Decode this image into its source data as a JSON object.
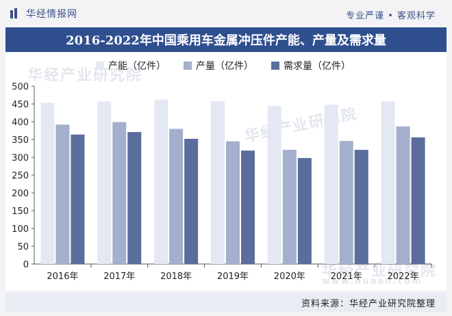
{
  "header": {
    "brand": "华经情报网",
    "slogan": "专业严谨 • 客观科学"
  },
  "colors": {
    "title_bg": "#2f4f8f",
    "capacity": "#e4e8f3",
    "output": "#a3afcc",
    "demand": "#5a6d9c"
  },
  "watermarks": [
    "华经产业研究院",
    "华经产业研究院",
    "华经产业研究院",
    "www.huaon.com"
  ],
  "source": "资料来源：华经产业研究院整理",
  "chart_data": {
    "type": "bar",
    "title": "2016-2022年中国乘用车金属冲压件产能、产量及需求量",
    "categories": [
      "2016年",
      "2017年",
      "2018年",
      "2019年",
      "2020年",
      "2021年",
      "2022年"
    ],
    "series": [
      {
        "name": "产能（亿件）",
        "values": [
          453,
          457,
          462,
          458,
          444,
          448,
          457
        ]
      },
      {
        "name": "产量（亿件）",
        "values": [
          392,
          399,
          380,
          345,
          321,
          346,
          387
        ]
      },
      {
        "name": "需求量（亿件）",
        "values": [
          364,
          371,
          352,
          319,
          298,
          321,
          356
        ]
      }
    ],
    "ylim": [
      0,
      500
    ],
    "yticks": [
      0,
      50,
      100,
      150,
      200,
      250,
      300,
      350,
      400,
      450,
      500
    ],
    "xlabel": "",
    "ylabel": "",
    "legend": "top-left"
  }
}
